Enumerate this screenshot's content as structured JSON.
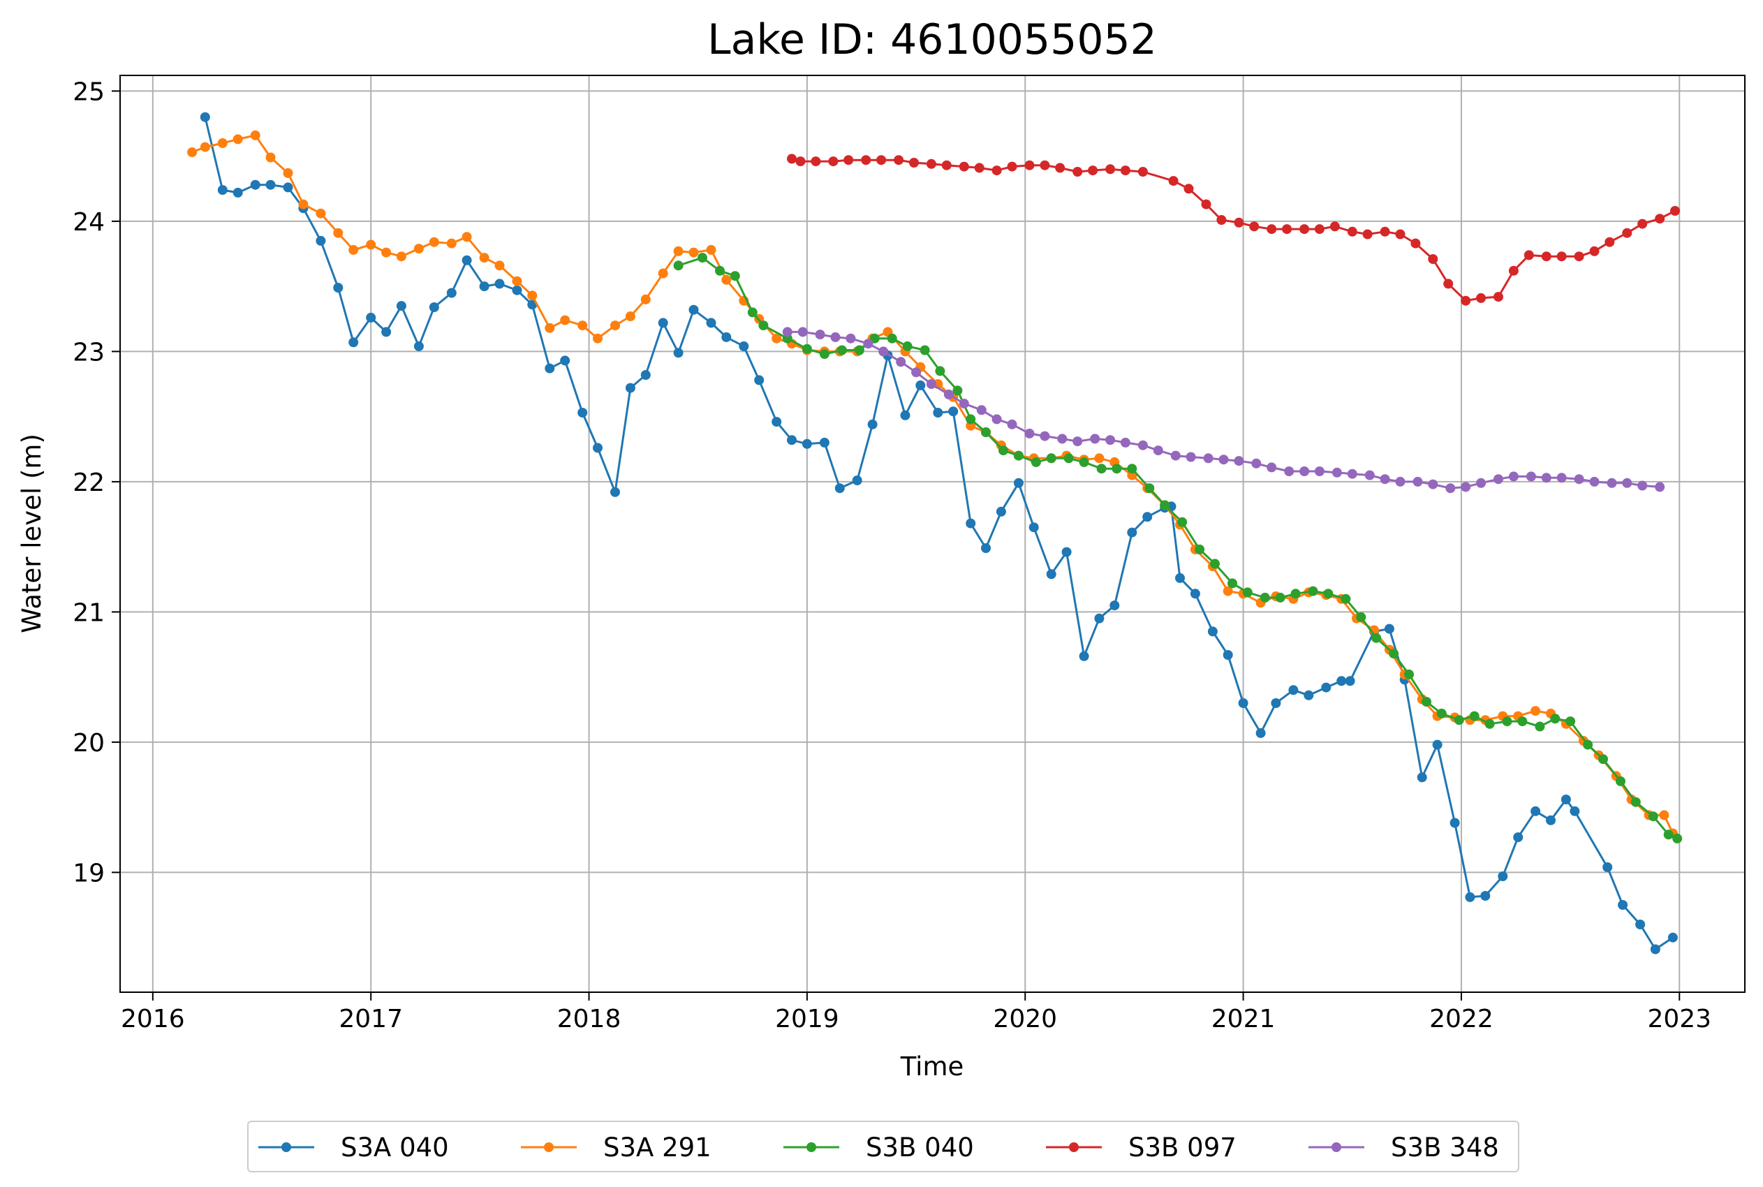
{
  "chart_data": {
    "type": "line",
    "title": "Lake ID: 4610055052",
    "xlabel": "Time",
    "ylabel": "Water level (m)",
    "xlim": [
      2015.85,
      2023.3
    ],
    "ylim": [
      18.08,
      25.12
    ],
    "x_ticks": [
      2016,
      2017,
      2018,
      2019,
      2020,
      2021,
      2022,
      2023
    ],
    "x_tick_labels": [
      "2016",
      "2017",
      "2018",
      "2019",
      "2020",
      "2021",
      "2022",
      "2023"
    ],
    "y_ticks": [
      19,
      20,
      21,
      22,
      23,
      24,
      25
    ],
    "y_tick_labels": [
      "19",
      "20",
      "21",
      "22",
      "23",
      "24",
      "25"
    ],
    "grid": true,
    "legend_position": "bottom-center",
    "series": [
      {
        "name": "S3A 040",
        "color": "#1f77b4",
        "x": [
          2016.24,
          2016.32,
          2016.39,
          2016.47,
          2016.54,
          2016.62,
          2016.69,
          2016.77,
          2016.85,
          2016.92,
          2017.0,
          2017.07,
          2017.14,
          2017.22,
          2017.29,
          2017.37,
          2017.44,
          2017.52,
          2017.59,
          2017.67,
          2017.74,
          2017.82,
          2017.89,
          2017.97,
          2018.04,
          2018.12,
          2018.19,
          2018.26,
          2018.34,
          2018.41,
          2018.48,
          2018.56,
          2018.63,
          2018.71,
          2018.78,
          2018.86,
          2018.93,
          2019.0,
          2019.08,
          2019.15,
          2019.23,
          2019.3,
          2019.37,
          2019.45,
          2019.52,
          2019.6,
          2019.67,
          2019.75,
          2019.82,
          2019.89,
          2019.97,
          2020.04,
          2020.12,
          2020.19,
          2020.27,
          2020.34,
          2020.41,
          2020.49,
          2020.56,
          2020.64,
          2020.67,
          2020.71,
          2020.78,
          2020.86,
          2020.93,
          2021.0,
          2021.08,
          2021.15,
          2021.23,
          2021.3,
          2021.38,
          2021.45,
          2021.49,
          2021.6,
          2021.67,
          2021.74,
          2021.82,
          2021.89,
          2021.97,
          2022.04,
          2022.11,
          2022.19,
          2022.26,
          2022.34,
          2022.41,
          2022.48,
          2022.52,
          2022.67,
          2022.74,
          2022.82,
          2022.89,
          2022.97
        ],
        "y": [
          24.8,
          24.24,
          24.22,
          24.28,
          24.28,
          24.26,
          24.1,
          23.85,
          23.49,
          23.07,
          23.26,
          23.15,
          23.35,
          23.04,
          23.34,
          23.45,
          23.7,
          23.5,
          23.52,
          23.47,
          23.36,
          22.87,
          22.93,
          22.53,
          22.26,
          21.92,
          22.72,
          22.82,
          23.22,
          22.99,
          23.32,
          23.22,
          23.11,
          23.04,
          22.78,
          22.46,
          22.32,
          22.29,
          22.3,
          21.95,
          22.01,
          22.44,
          22.97,
          22.51,
          22.74,
          22.53,
          22.54,
          21.68,
          21.49,
          21.77,
          21.99,
          21.65,
          21.29,
          21.46,
          20.66,
          20.95,
          21.05,
          21.61,
          21.73,
          21.8,
          21.81,
          21.26,
          21.14,
          20.85,
          20.67,
          20.3,
          20.07,
          20.3,
          20.4,
          20.36,
          20.42,
          20.47,
          20.47,
          20.85,
          20.87,
          20.48,
          19.73,
          19.98,
          19.38,
          18.81,
          18.82,
          18.97,
          19.27,
          19.47,
          19.4,
          19.56,
          19.47,
          19.04,
          18.75,
          18.6,
          18.41,
          18.5
        ]
      },
      {
        "name": "S3A 291",
        "color": "#ff7f0e",
        "x": [
          2016.18,
          2016.24,
          2016.32,
          2016.39,
          2016.47,
          2016.54,
          2016.62,
          2016.69,
          2016.77,
          2016.85,
          2016.92,
          2017.0,
          2017.07,
          2017.14,
          2017.22,
          2017.29,
          2017.37,
          2017.44,
          2017.52,
          2017.59,
          2017.67,
          2017.74,
          2017.82,
          2017.89,
          2017.97,
          2018.04,
          2018.12,
          2018.19,
          2018.26,
          2018.34,
          2018.41,
          2018.48,
          2018.56,
          2018.63,
          2018.71,
          2018.78,
          2018.86,
          2018.93,
          2019.0,
          2019.08,
          2019.15,
          2019.23,
          2019.3,
          2019.37,
          2019.45,
          2019.52,
          2019.6,
          2019.67,
          2019.75,
          2019.82,
          2019.89,
          2019.97,
          2020.04,
          2020.12,
          2020.19,
          2020.27,
          2020.34,
          2020.41,
          2020.49,
          2020.56,
          2020.64,
          2020.71,
          2020.78,
          2020.86,
          2020.93,
          2021.0,
          2021.08,
          2021.15,
          2021.23,
          2021.3,
          2021.38,
          2021.45,
          2021.52,
          2021.6,
          2021.67,
          2021.74,
          2021.82,
          2021.89,
          2021.97,
          2022.04,
          2022.11,
          2022.19,
          2022.26,
          2022.34,
          2022.41,
          2022.48,
          2022.56,
          2022.63,
          2022.71,
          2022.78,
          2022.86,
          2022.93,
          2022.97
        ],
        "y": [
          24.53,
          24.57,
          24.6,
          24.63,
          24.66,
          24.49,
          24.37,
          24.13,
          24.06,
          23.91,
          23.78,
          23.82,
          23.76,
          23.73,
          23.79,
          23.84,
          23.83,
          23.88,
          23.72,
          23.66,
          23.54,
          23.43,
          23.18,
          23.24,
          23.2,
          23.1,
          23.2,
          23.27,
          23.4,
          23.6,
          23.77,
          23.76,
          23.78,
          23.55,
          23.39,
          23.25,
          23.1,
          23.06,
          23.01,
          23.0,
          23.0,
          23.0,
          23.1,
          23.15,
          23.0,
          22.88,
          22.75,
          22.65,
          22.43,
          22.38,
          22.28,
          22.2,
          22.18,
          22.18,
          22.2,
          22.17,
          22.18,
          22.15,
          22.05,
          21.95,
          21.82,
          21.67,
          21.48,
          21.35,
          21.16,
          21.14,
          21.07,
          21.12,
          21.1,
          21.15,
          21.13,
          21.1,
          20.95,
          20.86,
          20.71,
          20.52,
          20.33,
          20.2,
          20.19,
          20.17,
          20.17,
          20.2,
          20.2,
          20.24,
          20.22,
          20.14,
          20.01,
          19.9,
          19.74,
          19.56,
          19.44,
          19.44,
          19.3
        ]
      },
      {
        "name": "S3B 040",
        "color": "#2ca02c",
        "x": [
          2018.41,
          2018.52,
          2018.6,
          2018.67,
          2018.75,
          2018.8,
          2018.91,
          2019.0,
          2019.08,
          2019.16,
          2019.24,
          2019.31,
          2019.39,
          2019.46,
          2019.54,
          2019.61,
          2019.69,
          2019.75,
          2019.82,
          2019.9,
          2019.97,
          2020.05,
          2020.12,
          2020.2,
          2020.27,
          2020.35,
          2020.42,
          2020.49,
          2020.57,
          2020.64,
          2020.72,
          2020.8,
          2020.87,
          2020.95,
          2021.02,
          2021.1,
          2021.17,
          2021.24,
          2021.32,
          2021.39,
          2021.47,
          2021.54,
          2021.61,
          2021.69,
          2021.76,
          2021.84,
          2021.91,
          2021.99,
          2022.06,
          2022.13,
          2022.21,
          2022.28,
          2022.36,
          2022.43,
          2022.5,
          2022.58,
          2022.65,
          2022.73,
          2022.8,
          2022.88,
          2022.95,
          2022.99
        ],
        "y": [
          23.66,
          23.72,
          23.62,
          23.58,
          23.3,
          23.2,
          23.1,
          23.02,
          22.98,
          23.01,
          23.01,
          23.1,
          23.1,
          23.04,
          23.01,
          22.85,
          22.7,
          22.48,
          22.38,
          22.24,
          22.2,
          22.15,
          22.18,
          22.18,
          22.15,
          22.1,
          22.1,
          22.1,
          21.95,
          21.82,
          21.69,
          21.48,
          21.37,
          21.22,
          21.15,
          21.11,
          21.11,
          21.14,
          21.16,
          21.14,
          21.1,
          20.96,
          20.8,
          20.68,
          20.52,
          20.31,
          20.22,
          20.17,
          20.2,
          20.14,
          20.16,
          20.16,
          20.12,
          20.18,
          20.16,
          19.98,
          19.87,
          19.7,
          19.54,
          19.43,
          19.29,
          19.26
        ]
      },
      {
        "name": "S3B 097",
        "color": "#d62728",
        "x": [
          2018.93,
          2018.97,
          2019.04,
          2019.12,
          2019.19,
          2019.27,
          2019.34,
          2019.42,
          2019.49,
          2019.57,
          2019.64,
          2019.72,
          2019.79,
          2019.87,
          2019.94,
          2020.02,
          2020.09,
          2020.16,
          2020.24,
          2020.31,
          2020.39,
          2020.46,
          2020.54,
          2020.68,
          2020.75,
          2020.83,
          2020.9,
          2020.98,
          2021.05,
          2021.13,
          2021.2,
          2021.28,
          2021.35,
          2021.42,
          2021.5,
          2021.57,
          2021.65,
          2021.72,
          2021.79,
          2021.87,
          2021.94,
          2022.02,
          2022.09,
          2022.17,
          2022.24,
          2022.31,
          2022.39,
          2022.46,
          2022.54,
          2022.61,
          2022.68,
          2022.76,
          2022.83,
          2022.91,
          2022.98
        ],
        "y": [
          24.48,
          24.46,
          24.46,
          24.46,
          24.47,
          24.47,
          24.47,
          24.47,
          24.45,
          24.44,
          24.43,
          24.42,
          24.41,
          24.39,
          24.42,
          24.43,
          24.43,
          24.41,
          24.38,
          24.39,
          24.4,
          24.39,
          24.38,
          24.31,
          24.25,
          24.13,
          24.01,
          23.99,
          23.96,
          23.94,
          23.94,
          23.94,
          23.94,
          23.96,
          23.92,
          23.9,
          23.92,
          23.9,
          23.83,
          23.71,
          23.52,
          23.39,
          23.41,
          23.42,
          23.62,
          23.74,
          23.73,
          23.73,
          23.73,
          23.77,
          23.84,
          23.91,
          23.98,
          24.02,
          24.08
        ]
      },
      {
        "name": "S3B 348",
        "color": "#9467bd",
        "x": [
          2018.91,
          2018.98,
          2019.06,
          2019.13,
          2019.2,
          2019.28,
          2019.35,
          2019.43,
          2019.5,
          2019.57,
          2019.65,
          2019.72,
          2019.8,
          2019.87,
          2019.94,
          2020.02,
          2020.09,
          2020.17,
          2020.24,
          2020.32,
          2020.39,
          2020.46,
          2020.54,
          2020.61,
          2020.69,
          2020.76,
          2020.84,
          2020.91,
          2020.98,
          2021.06,
          2021.13,
          2021.21,
          2021.28,
          2021.35,
          2021.43,
          2021.5,
          2021.58,
          2021.65,
          2021.72,
          2021.8,
          2021.87,
          2021.95,
          2022.02,
          2022.09,
          2022.17,
          2022.24,
          2022.32,
          2022.39,
          2022.46,
          2022.54,
          2022.61,
          2022.69,
          2022.76,
          2022.83,
          2022.91
        ],
        "y": [
          23.15,
          23.15,
          23.13,
          23.11,
          23.1,
          23.06,
          23.0,
          22.92,
          22.84,
          22.75,
          22.67,
          22.6,
          22.55,
          22.48,
          22.44,
          22.37,
          22.35,
          22.33,
          22.31,
          22.33,
          22.32,
          22.3,
          22.28,
          22.24,
          22.2,
          22.19,
          22.18,
          22.17,
          22.16,
          22.14,
          22.11,
          22.08,
          22.08,
          22.08,
          22.07,
          22.06,
          22.05,
          22.02,
          22.0,
          22.0,
          21.98,
          21.95,
          21.96,
          21.99,
          22.02,
          22.04,
          22.04,
          22.03,
          22.03,
          22.02,
          22.0,
          21.99,
          21.99,
          21.97,
          21.96
        ]
      }
    ]
  }
}
